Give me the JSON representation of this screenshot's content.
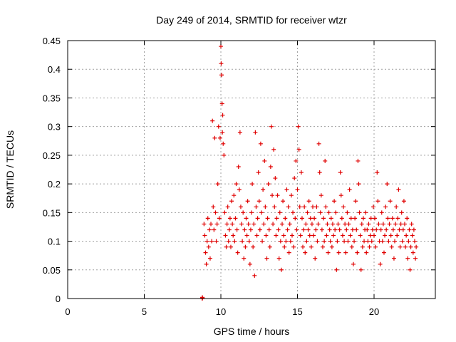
{
  "chart_data": {
    "type": "scatter",
    "title": "Day 249 of 2014, SRMTID for receiver wtzr",
    "xlabel": "GPS time / hours",
    "ylabel": "SRMTID / TECUs",
    "xlim": [
      0,
      24
    ],
    "ylim": [
      0,
      0.45
    ],
    "xticks": [
      0,
      5,
      10,
      15,
      20
    ],
    "yticks": [
      0,
      0.05,
      0.1,
      0.15,
      0.2,
      0.25,
      0.3,
      0.35,
      0.4,
      0.45
    ],
    "grid": true,
    "marker": "plus",
    "color": "#e00000",
    "series": [
      {
        "points": [
          [
            8.78,
            0.0
          ],
          [
            8.79,
            0.002
          ],
          [
            8.8,
            0.001
          ],
          [
            8.9,
            0.13
          ],
          [
            8.95,
            0.11
          ],
          [
            9.0,
            0.08
          ],
          [
            9.05,
            0.06
          ],
          [
            9.1,
            0.1
          ],
          [
            9.15,
            0.14
          ],
          [
            9.2,
            0.09
          ],
          [
            9.25,
            0.12
          ],
          [
            9.3,
            0.07
          ],
          [
            9.35,
            0.13
          ],
          [
            9.4,
            0.1
          ],
          [
            9.45,
            0.31
          ],
          [
            9.5,
            0.16
          ],
          [
            9.55,
            0.12
          ],
          [
            9.6,
            0.28
          ],
          [
            9.65,
            0.15
          ],
          [
            9.7,
            0.1
          ],
          [
            9.75,
            0.13
          ],
          [
            9.8,
            0.2
          ],
          [
            9.85,
            0.3
          ],
          [
            9.9,
            0.14
          ],
          [
            9.95,
            0.28
          ],
          [
            10.0,
            0.44
          ],
          [
            10.02,
            0.41
          ],
          [
            10.05,
            0.39
          ],
          [
            10.08,
            0.34
          ],
          [
            10.1,
            0.29
          ],
          [
            10.12,
            0.32
          ],
          [
            10.15,
            0.27
          ],
          [
            10.2,
            0.25
          ],
          [
            10.25,
            0.15
          ],
          [
            10.3,
            0.11
          ],
          [
            10.35,
            0.09
          ],
          [
            10.4,
            0.13
          ],
          [
            10.45,
            0.16
          ],
          [
            10.5,
            0.1
          ],
          [
            10.55,
            0.12
          ],
          [
            10.6,
            0.14
          ],
          [
            10.65,
            0.09
          ],
          [
            10.7,
            0.17
          ],
          [
            10.75,
            0.13
          ],
          [
            10.8,
            0.11
          ],
          [
            10.85,
            0.18
          ],
          [
            10.9,
            0.1
          ],
          [
            10.95,
            0.14
          ],
          [
            11.0,
            0.2
          ],
          [
            11.05,
            0.12
          ],
          [
            11.1,
            0.08
          ],
          [
            11.15,
            0.23
          ],
          [
            11.2,
            0.19
          ],
          [
            11.25,
            0.29
          ],
          [
            11.3,
            0.16
          ],
          [
            11.35,
            0.13
          ],
          [
            11.4,
            0.1
          ],
          [
            11.45,
            0.15
          ],
          [
            11.5,
            0.07
          ],
          [
            11.55,
            0.12
          ],
          [
            11.6,
            0.09
          ],
          [
            11.65,
            0.14
          ],
          [
            11.7,
            0.11
          ],
          [
            11.75,
            0.17
          ],
          [
            11.8,
            0.13
          ],
          [
            11.85,
            0.1
          ],
          [
            11.9,
            0.06
          ],
          [
            11.95,
            0.12
          ],
          [
            12.0,
            0.15
          ],
          [
            12.05,
            0.2
          ],
          [
            12.1,
            0.09
          ],
          [
            12.15,
            0.13
          ],
          [
            12.2,
            0.04
          ],
          [
            12.25,
            0.29
          ],
          [
            12.3,
            0.16
          ],
          [
            12.35,
            0.11
          ],
          [
            12.4,
            0.14
          ],
          [
            12.45,
            0.22
          ],
          [
            12.5,
            0.17
          ],
          [
            12.55,
            0.12
          ],
          [
            12.6,
            0.27
          ],
          [
            12.65,
            0.15
          ],
          [
            12.7,
            0.1
          ],
          [
            12.75,
            0.19
          ],
          [
            12.8,
            0.13
          ],
          [
            12.85,
            0.24
          ],
          [
            12.9,
            0.16
          ],
          [
            12.95,
            0.11
          ],
          [
            13.0,
            0.07
          ],
          [
            13.05,
            0.14
          ],
          [
            13.1,
            0.2
          ],
          [
            13.15,
            0.12
          ],
          [
            13.2,
            0.09
          ],
          [
            13.25,
            0.23
          ],
          [
            13.3,
            0.3
          ],
          [
            13.35,
            0.18
          ],
          [
            13.4,
            0.13
          ],
          [
            13.45,
            0.26
          ],
          [
            13.5,
            0.16
          ],
          [
            13.55,
            0.21
          ],
          [
            13.6,
            0.11
          ],
          [
            13.65,
            0.14
          ],
          [
            13.7,
            0.18
          ],
          [
            13.75,
            0.12
          ],
          [
            13.8,
            0.07
          ],
          [
            13.85,
            0.15
          ],
          [
            13.9,
            0.1
          ],
          [
            13.95,
            0.05
          ],
          [
            14.0,
            0.13
          ],
          [
            14.05,
            0.17
          ],
          [
            14.1,
            0.11
          ],
          [
            14.15,
            0.09
          ],
          [
            14.2,
            0.14
          ],
          [
            14.25,
            0.1
          ],
          [
            14.3,
            0.19
          ],
          [
            14.35,
            0.12
          ],
          [
            14.4,
            0.16
          ],
          [
            14.45,
            0.08
          ],
          [
            14.5,
            0.13
          ],
          [
            14.55,
            0.1
          ],
          [
            14.6,
            0.18
          ],
          [
            14.65,
            0.11
          ],
          [
            14.7,
            0.15
          ],
          [
            14.75,
            0.09
          ],
          [
            14.8,
            0.21
          ],
          [
            14.85,
            0.14
          ],
          [
            14.9,
            0.24
          ],
          [
            14.95,
            0.12
          ],
          [
            15.0,
            0.19
          ],
          [
            15.05,
            0.3
          ],
          [
            15.1,
            0.26
          ],
          [
            15.15,
            0.16
          ],
          [
            15.2,
            0.11
          ],
          [
            15.25,
            0.22
          ],
          [
            15.3,
            0.14
          ],
          [
            15.35,
            0.09
          ],
          [
            15.4,
            0.12
          ],
          [
            15.45,
            0.16
          ],
          [
            15.5,
            0.08
          ],
          [
            15.55,
            0.13
          ],
          [
            15.6,
            0.1
          ],
          [
            15.65,
            0.15
          ],
          [
            15.7,
            0.12
          ],
          [
            15.75,
            0.17
          ],
          [
            15.8,
            0.11
          ],
          [
            15.85,
            0.14
          ],
          [
            15.9,
            0.09
          ],
          [
            15.95,
            0.13
          ],
          [
            16.0,
            0.16
          ],
          [
            16.05,
            0.11
          ],
          [
            16.1,
            0.14
          ],
          [
            16.15,
            0.07
          ],
          [
            16.2,
            0.12
          ],
          [
            16.25,
            0.16
          ],
          [
            16.3,
            0.1
          ],
          [
            16.35,
            0.13
          ],
          [
            16.4,
            0.27
          ],
          [
            16.45,
            0.22
          ],
          [
            16.5,
            0.15
          ],
          [
            16.55,
            0.18
          ],
          [
            16.6,
            0.12
          ],
          [
            16.65,
            0.09
          ],
          [
            16.7,
            0.14
          ],
          [
            16.75,
            0.1
          ],
          [
            16.8,
            0.24
          ],
          [
            16.85,
            0.16
          ],
          [
            16.9,
            0.11
          ],
          [
            16.95,
            0.13
          ],
          [
            17.0,
            0.08
          ],
          [
            17.05,
            0.15
          ],
          [
            17.1,
            0.12
          ],
          [
            17.15,
            0.1
          ],
          [
            17.2,
            0.14
          ],
          [
            17.25,
            0.09
          ],
          [
            17.3,
            0.13
          ],
          [
            17.35,
            0.11
          ],
          [
            17.4,
            0.17
          ],
          [
            17.45,
            0.12
          ],
          [
            17.5,
            0.15
          ],
          [
            17.55,
            0.05
          ],
          [
            17.6,
            0.1
          ],
          [
            17.65,
            0.13
          ],
          [
            17.7,
            0.08
          ],
          [
            17.75,
            0.12
          ],
          [
            17.8,
            0.22
          ],
          [
            17.85,
            0.18
          ],
          [
            17.9,
            0.14
          ],
          [
            17.95,
            0.11
          ],
          [
            18.0,
            0.16
          ],
          [
            18.05,
            0.1
          ],
          [
            18.1,
            0.13
          ],
          [
            18.15,
            0.08
          ],
          [
            18.2,
            0.12
          ],
          [
            18.25,
            0.15
          ],
          [
            18.3,
            0.1
          ],
          [
            18.35,
            0.13
          ],
          [
            18.4,
            0.19
          ],
          [
            18.45,
            0.11
          ],
          [
            18.5,
            0.14
          ],
          [
            18.55,
            0.09
          ],
          [
            18.6,
            0.12
          ],
          [
            18.65,
            0.06
          ],
          [
            18.7,
            0.1
          ],
          [
            18.75,
            0.14
          ],
          [
            18.8,
            0.17
          ],
          [
            18.85,
            0.12
          ],
          [
            18.9,
            0.08
          ],
          [
            18.95,
            0.24
          ],
          [
            19.0,
            0.2
          ],
          [
            19.05,
            0.15
          ],
          [
            19.1,
            0.11
          ],
          [
            19.15,
            0.05
          ],
          [
            19.2,
            0.13
          ],
          [
            19.25,
            0.09
          ],
          [
            19.3,
            0.14
          ],
          [
            19.35,
            0.1
          ],
          [
            19.4,
            0.12
          ],
          [
            19.45,
            0.15
          ],
          [
            19.5,
            0.08
          ],
          [
            19.55,
            0.12
          ],
          [
            19.6,
            0.1
          ],
          [
            19.65,
            0.13
          ],
          [
            19.7,
            0.09
          ],
          [
            19.75,
            0.11
          ],
          [
            19.8,
            0.14
          ],
          [
            19.85,
            0.1
          ],
          [
            19.9,
            0.12
          ],
          [
            19.95,
            0.16
          ],
          [
            20.0,
            0.11
          ],
          [
            20.05,
            0.14
          ],
          [
            20.1,
            0.09
          ],
          [
            20.15,
            0.12
          ],
          [
            20.2,
            0.22
          ],
          [
            20.25,
            0.17
          ],
          [
            20.3,
            0.13
          ],
          [
            20.35,
            0.1
          ],
          [
            20.4,
            0.06
          ],
          [
            20.45,
            0.12
          ],
          [
            20.5,
            0.15
          ],
          [
            20.55,
            0.1
          ],
          [
            20.6,
            0.13
          ],
          [
            20.65,
            0.08
          ],
          [
            20.7,
            0.11
          ],
          [
            20.75,
            0.16
          ],
          [
            20.8,
            0.12
          ],
          [
            20.85,
            0.2
          ],
          [
            20.9,
            0.14
          ],
          [
            20.95,
            0.1
          ],
          [
            21.0,
            0.13
          ],
          [
            21.05,
            0.17
          ],
          [
            21.1,
            0.11
          ],
          [
            21.15,
            0.09
          ],
          [
            21.2,
            0.14
          ],
          [
            21.25,
            0.12
          ],
          [
            21.3,
            0.07
          ],
          [
            21.35,
            0.1
          ],
          [
            21.4,
            0.13
          ],
          [
            21.45,
            0.16
          ],
          [
            21.5,
            0.11
          ],
          [
            21.55,
            0.14
          ],
          [
            21.6,
            0.19
          ],
          [
            21.65,
            0.12
          ],
          [
            21.7,
            0.09
          ],
          [
            21.75,
            0.13
          ],
          [
            21.8,
            0.15
          ],
          [
            21.85,
            0.1
          ],
          [
            21.9,
            0.12
          ],
          [
            21.95,
            0.17
          ],
          [
            22.0,
            0.13
          ],
          [
            22.05,
            0.09
          ],
          [
            22.1,
            0.11
          ],
          [
            22.15,
            0.14
          ],
          [
            22.2,
            0.07
          ],
          [
            22.25,
            0.1
          ],
          [
            22.3,
            0.12
          ],
          [
            22.35,
            0.05
          ],
          [
            22.4,
            0.09
          ],
          [
            22.45,
            0.13
          ],
          [
            22.5,
            0.11
          ],
          [
            22.55,
            0.08
          ],
          [
            22.6,
            0.12
          ],
          [
            22.65,
            0.1
          ],
          [
            22.7,
            0.07
          ],
          [
            22.75,
            0.09
          ]
        ]
      }
    ]
  }
}
